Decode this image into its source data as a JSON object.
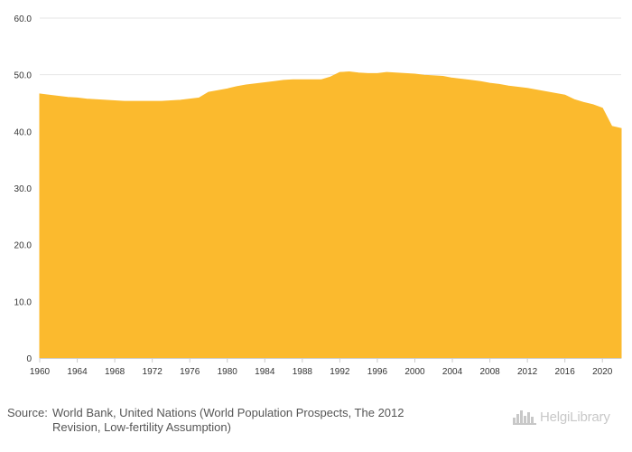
{
  "chart_data": {
    "type": "area",
    "title": "",
    "xlabel": "",
    "ylabel": "",
    "xlim": [
      1960,
      2022
    ],
    "ylim": [
      0,
      60
    ],
    "y_ticks": [
      0,
      10,
      20,
      30,
      40,
      50,
      60
    ],
    "y_tick_labels": [
      "0",
      "10.0",
      "20.0",
      "30.0",
      "40.0",
      "50.0",
      "60.0"
    ],
    "x_ticks": [
      1960,
      1964,
      1968,
      1972,
      1976,
      1980,
      1984,
      1988,
      1992,
      1996,
      2000,
      2004,
      2008,
      2012,
      2016,
      2020
    ],
    "grid": "horizontal",
    "legend": "none",
    "series": [
      {
        "name": "value",
        "color": "#FBBA2E",
        "x": [
          1960,
          1961,
          1962,
          1963,
          1964,
          1965,
          1966,
          1967,
          1968,
          1969,
          1970,
          1971,
          1972,
          1973,
          1974,
          1975,
          1976,
          1977,
          1978,
          1979,
          1980,
          1981,
          1982,
          1983,
          1984,
          1985,
          1986,
          1987,
          1988,
          1989,
          1990,
          1991,
          1992,
          1993,
          1994,
          1995,
          1996,
          1997,
          1998,
          1999,
          2000,
          2001,
          2002,
          2003,
          2004,
          2005,
          2006,
          2007,
          2008,
          2009,
          2010,
          2011,
          2012,
          2013,
          2014,
          2015,
          2016,
          2017,
          2018,
          2019,
          2020,
          2021,
          2022
        ],
        "values": [
          46.6,
          46.4,
          46.2,
          46.0,
          45.9,
          45.7,
          45.6,
          45.5,
          45.4,
          45.3,
          45.3,
          45.3,
          45.3,
          45.3,
          45.4,
          45.5,
          45.7,
          45.9,
          46.9,
          47.2,
          47.5,
          47.9,
          48.2,
          48.4,
          48.6,
          48.8,
          49.0,
          49.1,
          49.1,
          49.1,
          49.1,
          49.6,
          50.4,
          50.5,
          50.3,
          50.2,
          50.2,
          50.4,
          50.3,
          50.2,
          50.1,
          49.9,
          49.8,
          49.7,
          49.4,
          49.2,
          49.0,
          48.8,
          48.5,
          48.3,
          48.0,
          47.8,
          47.6,
          47.3,
          47.0,
          46.7,
          46.4,
          45.6,
          45.1,
          44.7,
          44.1,
          40.9,
          40.5
        ]
      }
    ],
    "colors": {
      "gridline": "#E6E6E6",
      "axis": "#CCCCCC",
      "tick_text": "#333333"
    }
  },
  "footer": {
    "source_label": "Source:",
    "source_line1": "World Bank, United Nations (World Population Prospects, The 2012",
    "source_line2": "Revision, Low-fertility Assumption)"
  },
  "logo": {
    "text": "HelgiLibrary",
    "icon": "city-skyline-icon"
  }
}
